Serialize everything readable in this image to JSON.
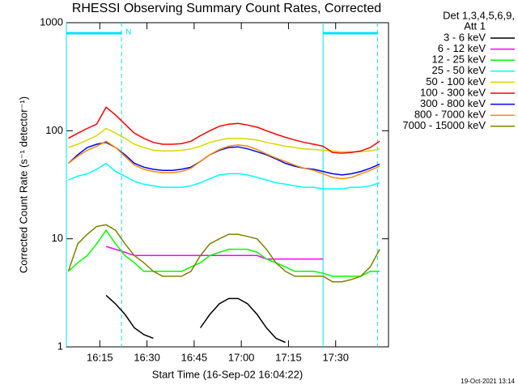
{
  "chart_data": {
    "type": "line",
    "title": "RHESSI Observing Summary Count Rates, Corrected",
    "xlabel": "Start Time (16-Sep-02 16:04:22)",
    "ylabel": "Corrected Count Rate (s⁻¹ detector⁻¹)",
    "legend_header": [
      "Det 1,3,4,5,6,9,",
      "Att 1"
    ],
    "legend": "outside-right",
    "footer": "19-Oct-2021 13:14",
    "ylog": true,
    "ylim": [
      1,
      1000
    ],
    "yticks": [
      1,
      10,
      100,
      1000
    ],
    "xlim": [
      4.37,
      106.8
    ],
    "xticks": [
      {
        "value": 15,
        "label": "16:15"
      },
      {
        "value": 30,
        "label": "16:30"
      },
      {
        "value": 45,
        "label": "16:45"
      },
      {
        "value": 60,
        "label": "17:00"
      },
      {
        "value": 75,
        "label": "17:15"
      },
      {
        "value": 90,
        "label": "17:30"
      }
    ],
    "night_intervals": [
      [
        4.37,
        21.9
      ],
      [
        86.0,
        103.3
      ]
    ],
    "night_label": "N",
    "night_color": "#00e0ff",
    "x": [
      5,
      8,
      11,
      14,
      17,
      20,
      23,
      26,
      29,
      32,
      35,
      38,
      41,
      44,
      47,
      50,
      53,
      56,
      59,
      62,
      65,
      68,
      71,
      74,
      77,
      80,
      83,
      86,
      89,
      92,
      95,
      98,
      101,
      104
    ],
    "series": [
      {
        "name": "3 - 6 keV",
        "color": "#000000",
        "values": [
          null,
          null,
          null,
          null,
          3,
          2.5,
          2,
          1.5,
          1.3,
          1.2,
          null,
          null,
          null,
          null,
          1.5,
          2,
          2.5,
          2.8,
          2.8,
          2.5,
          2,
          1.5,
          1.2,
          1.1,
          null,
          null,
          null,
          null,
          null,
          null,
          null,
          null,
          null,
          null
        ]
      },
      {
        "name": "6 - 12 keV",
        "color": "#ff00ff",
        "values": [
          null,
          null,
          null,
          null,
          8.5,
          8,
          7.5,
          7,
          7,
          7,
          7,
          7,
          7,
          7,
          7,
          7,
          7,
          7,
          7,
          7,
          7,
          6.5,
          6.5,
          6.5,
          6.5,
          6.5,
          6.5,
          6.5,
          null,
          null,
          null,
          null,
          null,
          null
        ]
      },
      {
        "name": "12 - 25 keV",
        "color": "#00ff00",
        "values": [
          5,
          6,
          7,
          9,
          12,
          9,
          7,
          6,
          5,
          5,
          5,
          5,
          5,
          5.5,
          6,
          7,
          7.5,
          8,
          8,
          8,
          7.5,
          6.5,
          6,
          5.5,
          5,
          5,
          5,
          4.8,
          4.5,
          4.5,
          4.5,
          4.5,
          5,
          5
        ]
      },
      {
        "name": "25 - 50 keV",
        "color": "#00ffff",
        "values": [
          35,
          38,
          40,
          44,
          50,
          42,
          38,
          34,
          32,
          31,
          30,
          30,
          30,
          31,
          33,
          36,
          39,
          40,
          40,
          39,
          37,
          35,
          33,
          32,
          31,
          30,
          30,
          29,
          29,
          29,
          30,
          30,
          31,
          33
        ]
      },
      {
        "name": "50 - 100 keV",
        "color": "#d8d800",
        "values": [
          70,
          75,
          82,
          90,
          105,
          95,
          85,
          75,
          70,
          66,
          65,
          65,
          66,
          68,
          72,
          78,
          82,
          85,
          85,
          84,
          82,
          78,
          75,
          72,
          70,
          68,
          67,
          66,
          65,
          64,
          64,
          64,
          65,
          68
        ]
      },
      {
        "name": "100 - 300 keV",
        "color": "#ff0000",
        "values": [
          85,
          95,
          105,
          115,
          165,
          140,
          115,
          95,
          85,
          78,
          75,
          75,
          76,
          80,
          90,
          100,
          110,
          115,
          117,
          113,
          108,
          100,
          93,
          87,
          82,
          78,
          75,
          72,
          63,
          62,
          63,
          65,
          70,
          80
        ]
      },
      {
        "name": "300 - 800 keV",
        "color": "#0000ff",
        "values": [
          50,
          60,
          70,
          75,
          78,
          70,
          60,
          50,
          46,
          44,
          43,
          43,
          44,
          46,
          52,
          60,
          66,
          70,
          71,
          68,
          64,
          60,
          55,
          50,
          47,
          45,
          44,
          42,
          40,
          39,
          40,
          42,
          45,
          49
        ]
      },
      {
        "name": "800 - 7000 keV",
        "color": "#ff8c00",
        "values": [
          50,
          58,
          66,
          72,
          80,
          70,
          58,
          48,
          44,
          42,
          41,
          41,
          42,
          45,
          52,
          60,
          67,
          72,
          74,
          72,
          67,
          61,
          56,
          52,
          48,
          45,
          43,
          40,
          37,
          36,
          37,
          40,
          43,
          47
        ]
      },
      {
        "name": "7000 - 15000 keV",
        "color": "#808000",
        "values": [
          5,
          9,
          11,
          13,
          13.5,
          12,
          9,
          7,
          6,
          5,
          4.5,
          4.5,
          4.5,
          5,
          7,
          9,
          10,
          11,
          11,
          10.5,
          10,
          8,
          6,
          5,
          4.5,
          4.5,
          4.5,
          4.5,
          4,
          4,
          4.2,
          4.5,
          5.5,
          8
        ]
      }
    ]
  }
}
